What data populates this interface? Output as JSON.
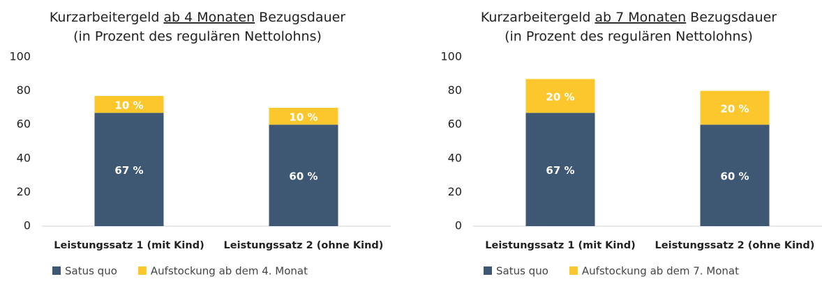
{
  "chart_data": [
    {
      "type": "bar",
      "stacked": true,
      "title_parts": [
        "Kurzarbeitergeld",
        "ab 4 Monaten",
        "Bezugsdauer"
      ],
      "subtitle": "(in Prozent des regulären Nettolohns)",
      "categories": [
        "Leistungssatz 1 (mit Kind)",
        "Leistungssatz 2 (ohne Kind)"
      ],
      "series": [
        {
          "name": "Satus quo",
          "color": "#3e5773",
          "values": [
            67,
            60
          ],
          "value_labels": [
            "67 %",
            "60 %"
          ]
        },
        {
          "name": "Aufstockung ab dem 4. Monat",
          "color": "#fcc72c",
          "values": [
            10,
            10
          ],
          "value_labels": [
            "10 %",
            "10 %"
          ]
        }
      ],
      "ylim": [
        0,
        100
      ],
      "yticks": [
        0,
        20,
        40,
        60,
        80,
        100
      ],
      "grid": false,
      "legend": "bottom"
    },
    {
      "type": "bar",
      "stacked": true,
      "title_parts": [
        "Kurzarbeitergeld",
        "ab 7 Monaten",
        "Bezugsdauer"
      ],
      "subtitle": "(in Prozent des regulären Nettolohns)",
      "categories": [
        "Leistungssatz 1 (mit Kind)",
        "Leistungssatz 2 (ohne Kind)"
      ],
      "series": [
        {
          "name": "Satus quo",
          "color": "#3e5773",
          "values": [
            67,
            60
          ],
          "value_labels": [
            "67 %",
            "60 %"
          ]
        },
        {
          "name": "Aufstockung ab dem 7. Monat",
          "color": "#fcc72c",
          "values": [
            20,
            20
          ],
          "value_labels": [
            "20 %",
            "20 %"
          ]
        }
      ],
      "ylim": [
        0,
        100
      ],
      "yticks": [
        0,
        20,
        40,
        60,
        80,
        100
      ],
      "grid": false,
      "legend": "bottom"
    }
  ]
}
